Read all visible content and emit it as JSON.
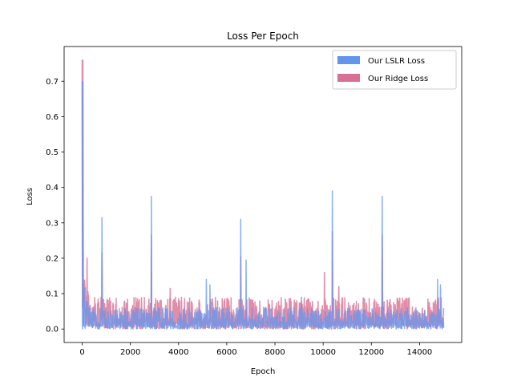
{
  "chart_data": {
    "type": "line",
    "title": "Loss Per Epoch",
    "xlabel": "Epoch",
    "ylabel": "Loss",
    "xlim": [
      -750,
      15750
    ],
    "ylim": [
      -0.038,
      0.798
    ],
    "x_ticks": [
      0,
      2000,
      4000,
      6000,
      8000,
      10000,
      12000,
      14000
    ],
    "y_ticks": [
      0.0,
      0.1,
      0.2,
      0.3,
      0.4,
      0.5,
      0.6,
      0.7
    ],
    "x_range": [
      0,
      15000
    ],
    "legend_position": "top-right",
    "grid": false,
    "series": [
      {
        "name": "Our LSLR Loss",
        "color": "#6495ed",
        "start_value": 0.7,
        "baseline_range": [
          0.0,
          0.06
        ],
        "peaks": [
          {
            "epoch": 30,
            "value": 0.7
          },
          {
            "epoch": 820,
            "value": 0.315
          },
          {
            "epoch": 2870,
            "value": 0.375
          },
          {
            "epoch": 5150,
            "value": 0.14
          },
          {
            "epoch": 5300,
            "value": 0.125
          },
          {
            "epoch": 6580,
            "value": 0.31
          },
          {
            "epoch": 6800,
            "value": 0.195
          },
          {
            "epoch": 9100,
            "value": 0.09
          },
          {
            "epoch": 10380,
            "value": 0.39
          },
          {
            "epoch": 12450,
            "value": 0.375
          },
          {
            "epoch": 14750,
            "value": 0.14
          },
          {
            "epoch": 14870,
            "value": 0.125
          }
        ]
      },
      {
        "name": "Our Ridge Loss",
        "color": "#d87093",
        "start_value": 0.76,
        "baseline_range": [
          0.0,
          0.09
        ],
        "peaks": [
          {
            "epoch": 30,
            "value": 0.76
          },
          {
            "epoch": 200,
            "value": 0.2
          },
          {
            "epoch": 820,
            "value": 0.215
          },
          {
            "epoch": 2870,
            "value": 0.265
          },
          {
            "epoch": 3650,
            "value": 0.115
          },
          {
            "epoch": 6580,
            "value": 0.205
          },
          {
            "epoch": 10050,
            "value": 0.16
          },
          {
            "epoch": 10380,
            "value": 0.275
          },
          {
            "epoch": 10650,
            "value": 0.12
          },
          {
            "epoch": 12450,
            "value": 0.265
          }
        ]
      }
    ]
  }
}
